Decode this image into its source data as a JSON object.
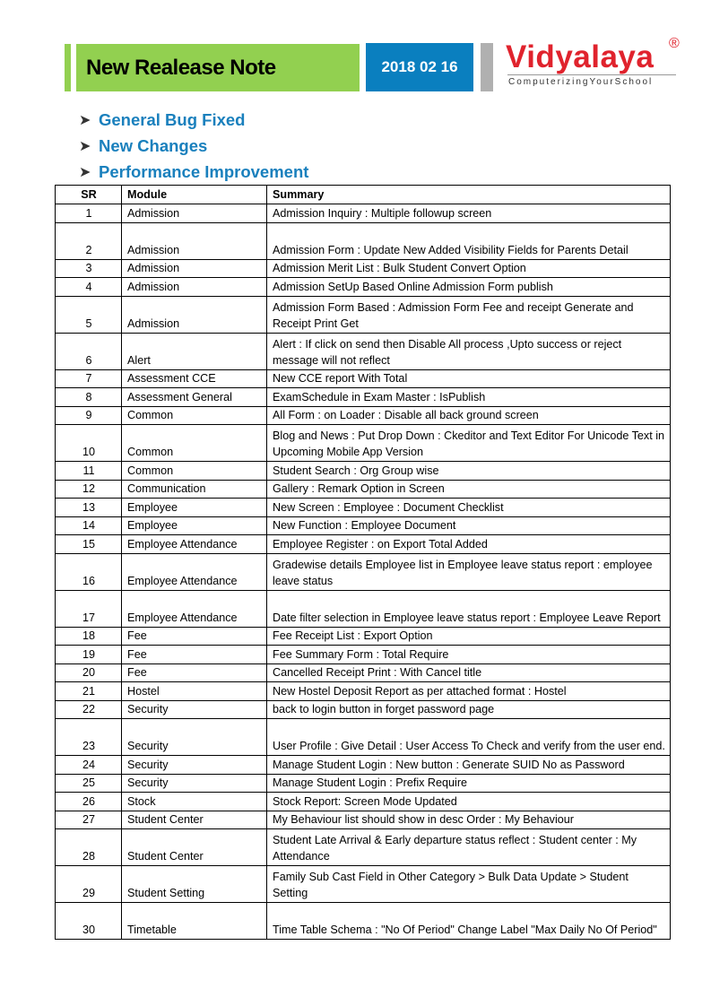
{
  "header": {
    "title": "New Realease Note",
    "date": "2018 02 16",
    "logo": {
      "name": "Vidyalaya",
      "registered": "®",
      "tagline": "ComputerizingYourSchool"
    }
  },
  "colors": {
    "title_bg": "#92d050",
    "date_bg": "#0a7fbf",
    "bullet_text": "#1a80bd",
    "logo_red": "#e0232d"
  },
  "highlights": [
    "General Bug Fixed",
    "New Changes",
    "Performance Improvement"
  ],
  "table": {
    "headers": [
      "SR",
      "Module",
      "Summary"
    ],
    "rows": [
      {
        "sr": "1",
        "module": "Admission",
        "summary": "Admission Inquiry : Multiple followup screen"
      },
      {
        "sr": "2",
        "module": "Admission",
        "summary": "Admission Form : Update New Added Visibility Fields for Parents Detail"
      },
      {
        "sr": "3",
        "module": "Admission",
        "summary": "Admission Merit List : Bulk Student Convert Option"
      },
      {
        "sr": "4",
        "module": "Admission",
        "summary": "Admission SetUp Based Online Admission Form publish"
      },
      {
        "sr": "5",
        "module": "Admission",
        "summary": "Admission Form Based : Admission Form Fee and receipt Generate and Receipt Print Get"
      },
      {
        "sr": "6",
        "module": "Alert",
        "summary": "Alert : If click on send then Disable All process ,Upto success or reject message will not reflect"
      },
      {
        "sr": "7",
        "module": "Assessment CCE",
        "summary": "New CCE report With Total"
      },
      {
        "sr": "8",
        "module": "Assessment General",
        "summary": "ExamSchedule in Exam Master : IsPublish"
      },
      {
        "sr": "9",
        "module": "Common",
        "summary": "All Form : on Loader : Disable all back ground screen"
      },
      {
        "sr": "10",
        "module": "Common",
        "summary": "Blog and News : Put Drop Down : Ckeditor and Text Editor For Unicode Text in Upcoming Mobile App Version"
      },
      {
        "sr": "11",
        "module": "Common",
        "summary": "Student Search : Org Group wise"
      },
      {
        "sr": "12",
        "module": "Communication",
        "summary": "Gallery : Remark Option in Screen"
      },
      {
        "sr": "13",
        "module": "Employee",
        "summary": "New Screen : Employee : Document Checklist"
      },
      {
        "sr": "14",
        "module": "Employee",
        "summary": "New Function : Employee Document"
      },
      {
        "sr": "15",
        "module": "Employee Attendance",
        "summary": "Employee Register : on Export Total Added"
      },
      {
        "sr": "16",
        "module": "Employee Attendance",
        "summary": "Gradewise details Employee list in Employee leave status report : employee leave status"
      },
      {
        "sr": "17",
        "module": "Employee Attendance",
        "summary": "Date filter selection in Employee leave status report : Employee Leave Report"
      },
      {
        "sr": "18",
        "module": "Fee",
        "summary": "Fee Receipt List : Export Option"
      },
      {
        "sr": "19",
        "module": "Fee",
        "summary": "Fee Summary Form : Total Require"
      },
      {
        "sr": "20",
        "module": "Fee",
        "summary": "Cancelled Receipt Print : With Cancel title"
      },
      {
        "sr": "21",
        "module": "Hostel",
        "summary": "New Hostel Deposit Report as per attached format : Hostel"
      },
      {
        "sr": "22",
        "module": "Security",
        "summary": "back to login button in forget password page"
      },
      {
        "sr": "23",
        "module": "Security",
        "summary": "User Profile : Give Detail : User Access To Check and verify from the user end."
      },
      {
        "sr": "24",
        "module": "Security",
        "summary": "Manage Student Login : New button : Generate SUID No as Password"
      },
      {
        "sr": "25",
        "module": "Security",
        "summary": "Manage Student Login : Prefix Require"
      },
      {
        "sr": "26",
        "module": "Stock",
        "summary": "Stock Report: Screen Mode Updated"
      },
      {
        "sr": "27",
        "module": "Student Center",
        "summary": "My Behaviour list should show in desc Order : My Behaviour"
      },
      {
        "sr": "28",
        "module": "Student Center",
        "summary": "Student Late Arrival & Early departure status reflect : Student center : My Attendance"
      },
      {
        "sr": "29",
        "module": "Student Setting",
        "summary": "Family Sub Cast Field in Other Category > Bulk Data Update > Student Setting"
      },
      {
        "sr": "30",
        "module": "Timetable",
        "summary": "Time Table Schema : \"No Of Period\" Change Label \"Max Daily No Of Period\""
      }
    ]
  }
}
